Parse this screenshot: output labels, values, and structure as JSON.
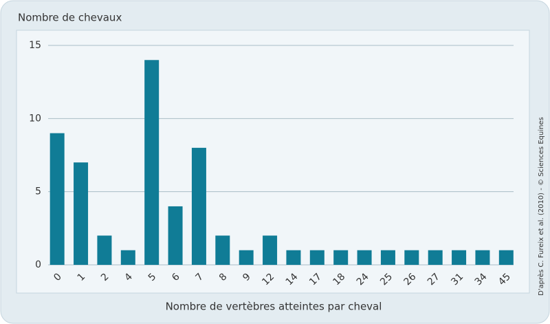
{
  "chart_data": {
    "type": "bar",
    "title": "Nombre de chevaux",
    "x_label": "Nombre de vertèbres atteintes par cheval",
    "source": "D'après C. Fureix et al. (2010) - © Sciences Equines",
    "categories": [
      "0",
      "1",
      "2",
      "4",
      "5",
      "6",
      "7",
      "8",
      "9",
      "12",
      "14",
      "17",
      "18",
      "24",
      "25",
      "26",
      "27",
      "31",
      "34",
      "45"
    ],
    "values": [
      9,
      7,
      2,
      1,
      14,
      4,
      8,
      2,
      1,
      2,
      1,
      1,
      1,
      1,
      1,
      1,
      1,
      1,
      1,
      1
    ],
    "color": "#107c96",
    "ylim": [
      0,
      15
    ],
    "yticks": [
      0,
      5,
      10,
      15
    ],
    "grid": true
  }
}
